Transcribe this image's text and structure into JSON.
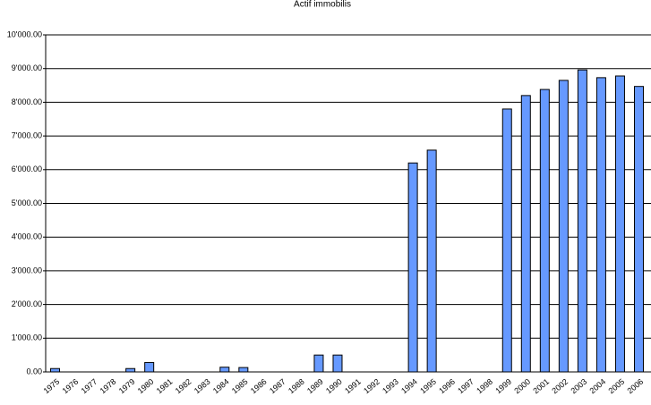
{
  "chart_data": {
    "type": "bar",
    "title": "Actif immobilis",
    "categories": [
      "1975",
      "1976",
      "1977",
      "1978",
      "1979",
      "1980",
      "1981",
      "1982",
      "1983",
      "1984",
      "1985",
      "1986",
      "1987",
      "1988",
      "1989",
      "1990",
      "1991",
      "1992",
      "1993",
      "1994",
      "1995",
      "1996",
      "1997",
      "1998",
      "1999",
      "2000",
      "2001",
      "2002",
      "2003",
      "2004",
      "2005",
      "2006"
    ],
    "values": [
      100,
      0,
      0,
      0,
      100,
      280,
      0,
      0,
      0,
      140,
      130,
      0,
      0,
      0,
      500,
      500,
      0,
      0,
      0,
      6200,
      6580,
      0,
      0,
      0,
      7800,
      8200,
      8380,
      8650,
      8960,
      8730,
      8780,
      8470
    ],
    "color": "#6699ff",
    "ylim": [
      0,
      10000
    ],
    "yticks": [
      {
        "value": 0,
        "label": "0.00"
      },
      {
        "value": 1000,
        "label": "1'000.00"
      },
      {
        "value": 2000,
        "label": "2'000.00"
      },
      {
        "value": 3000,
        "label": "3'000.00"
      },
      {
        "value": 4000,
        "label": "4'000.00"
      },
      {
        "value": 5000,
        "label": "5'000.00"
      },
      {
        "value": 6000,
        "label": "6'000.00"
      },
      {
        "value": 7000,
        "label": "7'000.00"
      },
      {
        "value": 8000,
        "label": "8'000.00"
      },
      {
        "value": 9000,
        "label": "9'000.00"
      },
      {
        "value": 10000,
        "label": "10'000.00"
      }
    ],
    "grid": true
  }
}
